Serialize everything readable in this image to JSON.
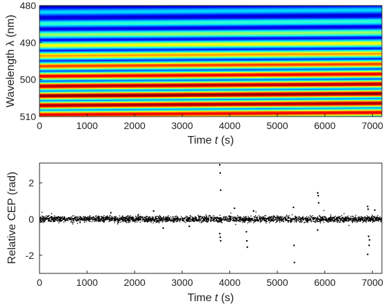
{
  "chart_data": [
    {
      "type": "heatmap",
      "xlabel_main": "Time ",
      "xlabel_var": "t",
      "xlabel_unit": " (s)",
      "ylabel": "Wavelength λ (nm)",
      "xlim": [
        0,
        7200
      ],
      "ylim": [
        480,
        510
      ],
      "y_reversed": true,
      "x_ticks": [
        0,
        1000,
        2000,
        3000,
        4000,
        5000,
        6000,
        7000
      ],
      "y_ticks": [
        480,
        490,
        500,
        510
      ],
      "colormap": "jet",
      "fringes": {
        "wavelength_range": [
          480,
          510
        ],
        "peaks_nm_at_t0": [
          481.8,
          484.9,
          487.9,
          490.8,
          493.6,
          496.4,
          499.1,
          501.8,
          504.4,
          507.0,
          509.5
        ],
        "peak_intensity": [
          0.33,
          0.42,
          0.52,
          0.62,
          0.72,
          0.82,
          0.9,
          0.96,
          1.0,
          0.97,
          0.9
        ],
        "drift_nm_over_record": -0.6
      }
    },
    {
      "type": "scatter",
      "xlabel_main": "Time ",
      "xlabel_var": "t",
      "xlabel_unit": " (s)",
      "ylabel": "Relative CEP (rad)",
      "xlim": [
        0,
        7200
      ],
      "ylim": [
        -3,
        3.1
      ],
      "x_ticks": [
        0,
        1000,
        2000,
        3000,
        4000,
        5000,
        6000,
        7000
      ],
      "y_ticks": [
        -2,
        0,
        2
      ],
      "marker_color": "#000000",
      "noise_band_rad": 0.15,
      "outliers": [
        {
          "x": 3790,
          "y": 3.0
        },
        {
          "x": 3800,
          "y": 2.55
        },
        {
          "x": 3810,
          "y": 1.6
        },
        {
          "x": 3790,
          "y": -0.8
        },
        {
          "x": 3800,
          "y": -1.0
        },
        {
          "x": 3810,
          "y": -1.2
        },
        {
          "x": 4350,
          "y": -0.7
        },
        {
          "x": 4360,
          "y": -1.2
        },
        {
          "x": 4370,
          "y": -1.55
        },
        {
          "x": 5350,
          "y": -1.45
        },
        {
          "x": 5360,
          "y": -2.4
        },
        {
          "x": 5340,
          "y": 0.65
        },
        {
          "x": 5850,
          "y": 1.45
        },
        {
          "x": 5860,
          "y": 1.3
        },
        {
          "x": 5870,
          "y": 0.9
        },
        {
          "x": 5850,
          "y": -0.6
        },
        {
          "x": 6900,
          "y": 0.7
        },
        {
          "x": 6910,
          "y": 0.55
        },
        {
          "x": 6920,
          "y": -0.95
        },
        {
          "x": 6930,
          "y": -1.45
        },
        {
          "x": 6900,
          "y": -1.95
        },
        {
          "x": 6940,
          "y": -1.15
        },
        {
          "x": 2400,
          "y": 0.45
        },
        {
          "x": 2600,
          "y": -0.5
        },
        {
          "x": 4100,
          "y": 0.6
        },
        {
          "x": 4500,
          "y": 0.45
        },
        {
          "x": 3150,
          "y": -0.4
        },
        {
          "x": 1500,
          "y": 0.35
        },
        {
          "x": 7050,
          "y": 0.5
        }
      ]
    }
  ]
}
